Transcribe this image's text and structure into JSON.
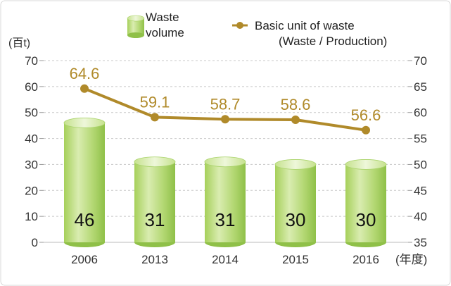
{
  "chart_data": {
    "type": "bar+line",
    "categories": [
      "2006",
      "2013",
      "2014",
      "2015",
      "2016"
    ],
    "x_unit": "(年度)",
    "series": [
      {
        "name": "Waste volume",
        "name_lines": [
          "Waste",
          "volume"
        ],
        "type": "bar",
        "axis": "left",
        "values": [
          46,
          31,
          31,
          30,
          30
        ],
        "labels": [
          "46",
          "31",
          "31",
          "30",
          "30"
        ],
        "color": "#9ccc4e"
      },
      {
        "name": "Basic unit of waste (Waste / Production)",
        "name_lines": [
          "Basic unit of waste",
          "(Waste / Production)"
        ],
        "type": "line",
        "axis": "right",
        "values": [
          64.6,
          59.1,
          58.7,
          58.6,
          56.6
        ],
        "labels": [
          "64.6",
          "59.1",
          "58.7",
          "58.6",
          "56.6"
        ],
        "color": "#b08a2a"
      }
    ],
    "left_axis": {
      "unit": "(百t)",
      "ylim": [
        0,
        70
      ],
      "ticks": [
        "0",
        "10",
        "20",
        "30",
        "40",
        "50",
        "60",
        "70"
      ]
    },
    "right_axis": {
      "ylim": [
        35,
        70
      ],
      "ticks": [
        "35",
        "40",
        "45",
        "50",
        "55",
        "60",
        "65",
        "70"
      ]
    },
    "grid": true,
    "legend_position": "top"
  }
}
